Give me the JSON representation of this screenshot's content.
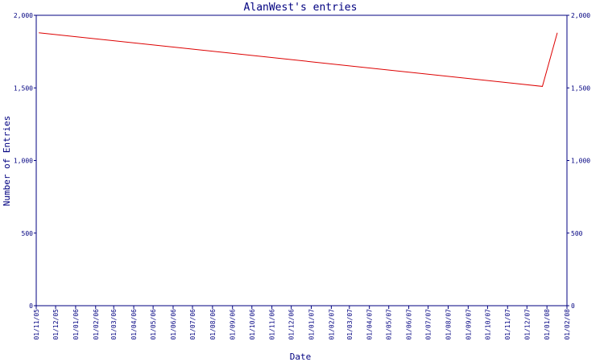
{
  "colors": {
    "axis": "#000080",
    "series": "#dd0000",
    "background": "#ffffff"
  },
  "chart_data": {
    "type": "line",
    "title": "AlanWest's entries",
    "xlabel": "Date",
    "ylabel": "Number of Entries",
    "ylim": [
      0,
      2000
    ],
    "xlim": [
      "2005-11-01",
      "2008-02-01"
    ],
    "grid": false,
    "y_ticks": [
      0,
      500,
      1000,
      1500,
      2000
    ],
    "y_tick_labels": [
      "0",
      "500",
      "1,000",
      "1,500",
      "2,000"
    ],
    "x_ticks": [
      "2005-11-01",
      "2005-12-01",
      "2006-01-01",
      "2006-02-01",
      "2006-03-01",
      "2006-04-01",
      "2006-05-01",
      "2006-06-01",
      "2006-07-01",
      "2006-08-01",
      "2006-09-01",
      "2006-10-01",
      "2006-11-01",
      "2006-12-01",
      "2007-01-01",
      "2007-02-01",
      "2007-03-01",
      "2007-04-01",
      "2007-05-01",
      "2007-06-01",
      "2007-07-01",
      "2007-08-01",
      "2007-09-01",
      "2007-10-01",
      "2007-11-01",
      "2007-12-01",
      "2008-01-01",
      "2008-02-01"
    ],
    "x_tick_labels": [
      "01/11/05",
      "01/12/05",
      "01/01/06",
      "01/02/06",
      "01/03/06",
      "01/04/06",
      "01/05/06",
      "01/06/06",
      "01/07/06",
      "01/08/06",
      "01/09/06",
      "01/10/06",
      "01/11/06",
      "01/12/06",
      "01/01/07",
      "01/02/07",
      "01/03/07",
      "01/04/07",
      "01/05/07",
      "01/06/07",
      "01/07/07",
      "01/08/07",
      "01/09/07",
      "01/10/07",
      "01/11/07",
      "01/12/07",
      "01/01/08",
      "01/02/08"
    ],
    "series": [
      {
        "x": [
          "2005-11-05",
          "2007-12-25",
          "2008-01-17"
        ],
        "y": [
          1880,
          1510,
          1880
        ]
      }
    ]
  }
}
